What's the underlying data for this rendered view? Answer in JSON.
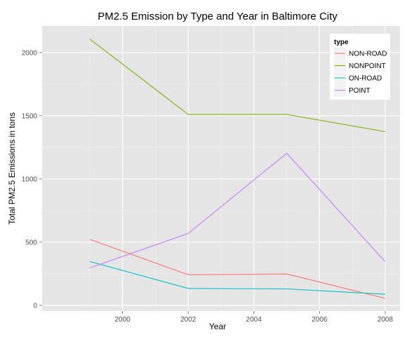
{
  "chart_data": {
    "type": "line",
    "title": "PM2.5 Emission by Type and Year in Baltimore City",
    "xlabel": "Year",
    "ylabel": "Total PM2.5 Emissions in tons",
    "x": [
      1999,
      2002,
      2005,
      2008
    ],
    "xlim": [
      1997.55,
      2008.45
    ],
    "ylim": [
      -45,
      2210
    ],
    "x_ticks": [
      2000,
      2002,
      2004,
      2006,
      2008
    ],
    "y_ticks": [
      0,
      500,
      1000,
      1500,
      2000
    ],
    "grid": true,
    "legend": {
      "title": "type",
      "position": "top-right"
    },
    "series": [
      {
        "name": "NON-ROAD",
        "color": "#f8766d",
        "values": [
          522,
          242,
          248,
          55
        ]
      },
      {
        "name": "NONPOINT",
        "color": "#7cae00",
        "values": [
          2108,
          1510,
          1510,
          1374
        ]
      },
      {
        "name": "ON-ROAD",
        "color": "#00bfc4",
        "values": [
          347,
          134,
          130,
          88
        ]
      },
      {
        "name": "POINT",
        "color": "#c77cff",
        "values": [
          296,
          569,
          1203,
          345
        ]
      }
    ]
  }
}
